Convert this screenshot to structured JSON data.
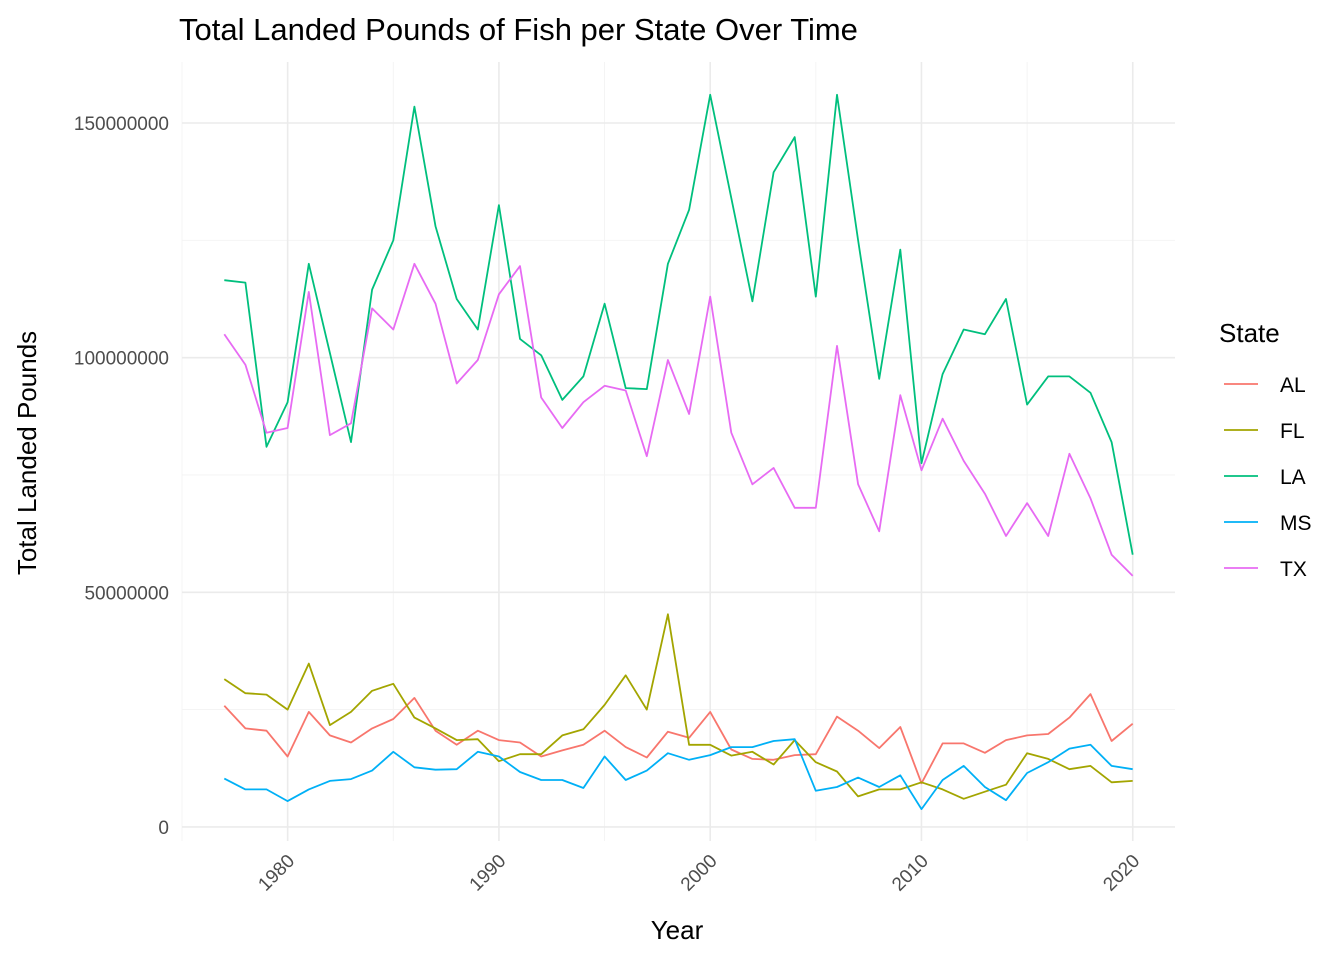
{
  "chart_data": {
    "type": "line",
    "title": "Total Landed Pounds of Fish per State Over Time",
    "xlabel": "Year",
    "ylabel": "Total Landed Pounds",
    "xlim": [
      1975,
      2022
    ],
    "ylim": [
      -3000000,
      163000000
    ],
    "x_ticks": [
      1980,
      1990,
      2000,
      2010,
      2020
    ],
    "x_tick_labels": [
      "1980",
      "1990",
      "2000",
      "2010",
      "2020"
    ],
    "y_ticks": [
      0,
      50000000,
      100000000,
      150000000
    ],
    "y_tick_labels": [
      "0",
      "50000000",
      "100000000",
      "150000000"
    ],
    "grid": true,
    "legend": {
      "title": "State",
      "position": "right"
    },
    "x": [
      1977,
      1978,
      1979,
      1980,
      1981,
      1982,
      1983,
      1984,
      1985,
      1986,
      1987,
      1988,
      1989,
      1990,
      1991,
      1992,
      1993,
      1994,
      1995,
      1996,
      1997,
      1998,
      1999,
      2000,
      2001,
      2002,
      2003,
      2004,
      2005,
      2006,
      2007,
      2008,
      2009,
      2010,
      2011,
      2012,
      2013,
      2014,
      2015,
      2016,
      2017,
      2018,
      2019,
      2020
    ],
    "series": [
      {
        "name": "AL",
        "color": "#F8766D",
        "values": [
          25800000,
          21000000,
          20500000,
          15000000,
          24500000,
          19500000,
          18000000,
          21000000,
          23000000,
          27500000,
          20500000,
          17500000,
          20500000,
          18500000,
          18000000,
          15000000,
          16300000,
          17500000,
          20500000,
          17000000,
          14800000,
          20300000,
          19000000,
          24500000,
          16500000,
          14500000,
          14300000,
          15300000,
          15500000,
          23500000,
          20500000,
          16800000,
          21300000,
          9300000,
          17800000,
          17800000,
          15800000,
          18500000,
          19500000,
          19800000,
          23300000,
          28300000,
          18300000,
          22000000
        ]
      },
      {
        "name": "FL",
        "color": "#A3A500",
        "values": [
          31500000,
          28500000,
          28200000,
          25000000,
          34800000,
          21700000,
          24500000,
          29000000,
          30500000,
          23300000,
          21000000,
          18500000,
          18700000,
          14000000,
          15500000,
          15500000,
          19500000,
          20800000,
          26000000,
          32300000,
          25000000,
          45300000,
          17500000,
          17500000,
          15200000,
          16000000,
          13300000,
          18500000,
          13800000,
          11800000,
          6500000,
          8000000,
          8000000,
          9500000,
          8000000,
          6000000,
          7500000,
          9000000,
          15700000,
          14500000,
          12300000,
          13000000,
          9500000,
          9800000
        ]
      },
      {
        "name": "LA",
        "color": "#00BF7D",
        "values": [
          116500000,
          116000000,
          81000000,
          90500000,
          120000000,
          101000000,
          82000000,
          114500000,
          125000000,
          153500000,
          128000000,
          112500000,
          106000000,
          132500000,
          104000000,
          100500000,
          91000000,
          96000000,
          111500000,
          93500000,
          93300000,
          120000000,
          131500000,
          156000000,
          134000000,
          112000000,
          139500000,
          147000000,
          113000000,
          156000000,
          125000000,
          95500000,
          123000000,
          77500000,
          96500000,
          106000000,
          105000000,
          112500000,
          90000000,
          96000000,
          96000000,
          92500000,
          82000000,
          58000000
        ]
      },
      {
        "name": "MS",
        "color": "#00B0F6",
        "values": [
          10300000,
          8000000,
          8000000,
          5500000,
          8000000,
          9800000,
          10200000,
          12000000,
          16000000,
          12700000,
          12200000,
          12300000,
          16000000,
          15000000,
          11700000,
          10000000,
          10000000,
          8300000,
          15000000,
          10000000,
          12000000,
          15700000,
          14300000,
          15300000,
          17000000,
          17000000,
          18300000,
          18700000,
          7700000,
          8500000,
          10500000,
          8500000,
          11000000,
          3800000,
          10000000,
          13000000,
          8500000,
          5700000,
          11500000,
          13800000,
          16700000,
          17500000,
          13000000,
          12300000
        ]
      },
      {
        "name": "TX",
        "color": "#E76BF3",
        "values": [
          105000000,
          98500000,
          84000000,
          85000000,
          114000000,
          83500000,
          86000000,
          110500000,
          106000000,
          120000000,
          111500000,
          94500000,
          99500000,
          113500000,
          119500000,
          91500000,
          85000000,
          90500000,
          94000000,
          93000000,
          79000000,
          99500000,
          88000000,
          113000000,
          84000000,
          73000000,
          76500000,
          68000000,
          68000000,
          102500000,
          73000000,
          63000000,
          92000000,
          76000000,
          87000000,
          78000000,
          71000000,
          62000000,
          69000000,
          62000000,
          79500000,
          70000000,
          58000000,
          53500000
        ]
      }
    ]
  }
}
